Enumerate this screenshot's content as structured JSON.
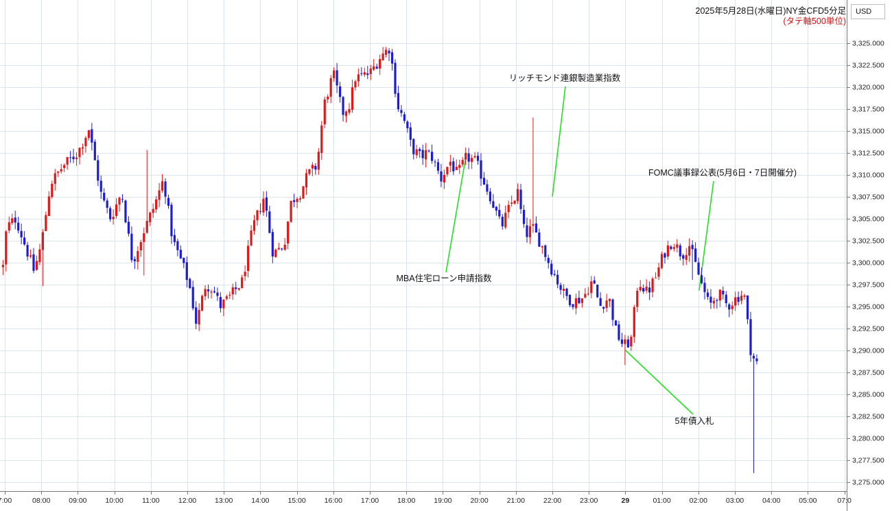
{
  "chart_data": {
    "type": "candlestick",
    "title": "2025年5月28日(水曜日)NY金CFD5分足",
    "subtitle": "(タテ軸500単位)",
    "currency": "USD",
    "ylim": [
      3273.0,
      3329.5
    ],
    "yticks": [
      "3,275.000",
      "3,277.500",
      "3,280.000",
      "3,282.500",
      "3,285.000",
      "3,287.500",
      "3,290.000",
      "3,292.500",
      "3,295.000",
      "3,297.500",
      "3,300.000",
      "3,302.500",
      "3,305.000",
      "3,307.500",
      "3,310.000",
      "3,312.500",
      "3,315.000",
      "3,317.500",
      "3,320.000",
      "3,322.500",
      "3,325.000"
    ],
    "xticks": [
      "7:00",
      "08:00",
      "09:00",
      "10:00",
      "11:00",
      "12:00",
      "13:00",
      "14:00",
      "15:00",
      "16:00",
      "17:00",
      "18:00",
      "19:00",
      "20:00",
      "21:00",
      "22:00",
      "23:00",
      "29",
      "01:00",
      "02:00",
      "03:00",
      "04:00",
      "05:00",
      "07:0"
    ],
    "grid": true,
    "colors": {
      "up": "#e01818",
      "down": "#1c1cd6",
      "grid": "#dde3ea",
      "annotation_line": "#22e022"
    },
    "anchors": [
      [
        -0.05,
        3299.5
      ],
      [
        0.05,
        3304
      ],
      [
        0.3,
        3305
      ],
      [
        0.8,
        3299
      ],
      [
        1.0,
        3302
      ],
      [
        1.25,
        3309
      ],
      [
        1.6,
        3311
      ],
      [
        2.0,
        3312.5
      ],
      [
        2.3,
        3315.2
      ],
      [
        2.65,
        3307.5
      ],
      [
        2.9,
        3305
      ],
      [
        3.2,
        3308
      ],
      [
        3.5,
        3300
      ],
      [
        3.8,
        3303.5
      ],
      [
        4.1,
        3306.5
      ],
      [
        4.35,
        3309.5
      ],
      [
        4.6,
        3302.5
      ],
      [
        4.85,
        3300
      ],
      [
        5.05,
        3297.5
      ],
      [
        5.25,
        3293
      ],
      [
        5.5,
        3297.5
      ],
      [
        5.7,
        3297
      ],
      [
        5.9,
        3295
      ],
      [
        6.15,
        3296
      ],
      [
        6.5,
        3297.8
      ],
      [
        6.8,
        3304
      ],
      [
        7.1,
        3307.5
      ],
      [
        7.35,
        3301
      ],
      [
        7.65,
        3302
      ],
      [
        7.85,
        3307
      ],
      [
        8.1,
        3308
      ],
      [
        8.3,
        3310
      ],
      [
        8.55,
        3311
      ],
      [
        8.75,
        3318
      ],
      [
        9.0,
        3321.5
      ],
      [
        9.25,
        3317
      ],
      [
        9.45,
        3318
      ],
      [
        9.6,
        3321
      ],
      [
        10.0,
        3321.5
      ],
      [
        10.3,
        3323.5
      ],
      [
        10.55,
        3324.5
      ],
      [
        10.75,
        3318
      ],
      [
        10.95,
        3316
      ],
      [
        11.15,
        3313
      ],
      [
        11.4,
        3312
      ],
      [
        11.55,
        3312.5
      ],
      [
        11.7,
        3312
      ],
      [
        11.95,
        3309.5
      ],
      [
        12.2,
        3311.5
      ],
      [
        12.4,
        3310
      ],
      [
        12.65,
        3312
      ],
      [
        12.9,
        3311.5
      ],
      [
        13.1,
        3309.5
      ],
      [
        13.35,
        3307
      ],
      [
        13.6,
        3304
      ],
      [
        13.85,
        3306.5
      ],
      [
        14.05,
        3308
      ],
      [
        14.25,
        3303
      ],
      [
        14.45,
        3304
      ],
      [
        14.7,
        3302
      ],
      [
        14.95,
        3299.5
      ],
      [
        15.3,
        3296.5
      ],
      [
        15.55,
        3295.5
      ],
      [
        15.85,
        3296
      ],
      [
        16.1,
        3298
      ],
      [
        16.3,
        3295
      ],
      [
        16.55,
        3296
      ],
      [
        16.75,
        3292
      ],
      [
        16.95,
        3290.5
      ],
      [
        17.15,
        3291
      ],
      [
        17.35,
        3298
      ],
      [
        17.6,
        3296.5
      ],
      [
        17.85,
        3298.5
      ],
      [
        18.05,
        3301
      ],
      [
        18.3,
        3302.5
      ],
      [
        18.55,
        3300.8
      ],
      [
        18.75,
        3302
      ],
      [
        19.05,
        3298
      ],
      [
        19.3,
        3295
      ],
      [
        19.55,
        3296.5
      ],
      [
        19.8,
        3295
      ],
      [
        20.05,
        3296
      ],
      [
        20.25,
        3296.5
      ],
      [
        20.45,
        3289.5
      ],
      [
        20.6,
        3288.5
      ]
    ],
    "annotations": [
      {
        "text": "MBA住宅ローン申請指数",
        "time": 12.65,
        "price": 3312.5
      },
      {
        "text": "リッチモンド連銀製造業指数",
        "time": 15.0,
        "price": 3307.5
      },
      {
        "text": "FOMC議事録公表(5月6日・7日開催分)",
        "time": 19.02,
        "price": 3296.8
      },
      {
        "text": "5年債入札",
        "time": 17.0,
        "price": 3290.0
      }
    ]
  }
}
